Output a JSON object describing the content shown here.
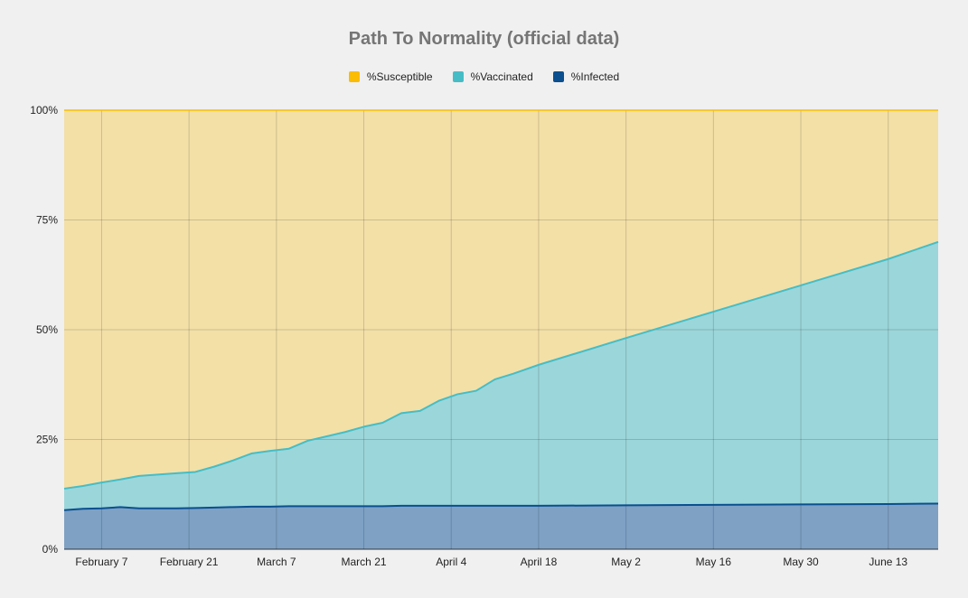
{
  "colors": {
    "susceptible": "#fbbc04",
    "vaccinated": "#46bdc6",
    "infected": "#0b4f8f",
    "susceptible_fill": "#f3e0a7",
    "vaccinated_fill": "#9bd6da",
    "infected_fill": "#7ea1c4"
  },
  "chart_data": {
    "type": "area",
    "stacked": true,
    "title": "Path To Normality (official data)",
    "legend_position": "top",
    "grid": true,
    "y_ticks": [
      "0%",
      "25%",
      "50%",
      "75%",
      "100%"
    ],
    "ylim": [
      0,
      100
    ],
    "x_ticks": [
      {
        "label": "February 7",
        "date": "2021-02-07"
      },
      {
        "label": "February 21",
        "date": "2021-02-21"
      },
      {
        "label": "March 7",
        "date": "2021-03-07"
      },
      {
        "label": "March 21",
        "date": "2021-03-21"
      },
      {
        "label": "April 4",
        "date": "2021-04-04"
      },
      {
        "label": "April 18",
        "date": "2021-04-18"
      },
      {
        "label": "May 2",
        "date": "2021-05-02"
      },
      {
        "label": "May 16",
        "date": "2021-05-16"
      },
      {
        "label": "May 30",
        "date": "2021-05-30"
      },
      {
        "label": "June 13",
        "date": "2021-06-13"
      }
    ],
    "x": [
      "2021-02-01",
      "2021-02-04",
      "2021-02-07",
      "2021-02-10",
      "2021-02-13",
      "2021-02-16",
      "2021-02-19",
      "2021-02-22",
      "2021-02-25",
      "2021-02-28",
      "2021-03-03",
      "2021-03-06",
      "2021-03-09",
      "2021-03-12",
      "2021-03-15",
      "2021-03-18",
      "2021-03-21",
      "2021-03-24",
      "2021-03-27",
      "2021-03-30",
      "2021-04-02",
      "2021-04-05",
      "2021-04-08",
      "2021-04-11",
      "2021-04-14",
      "2021-04-18",
      "2021-05-02",
      "2021-05-16",
      "2021-05-30",
      "2021-06-13",
      "2021-06-21"
    ],
    "series": [
      {
        "name": "%Susceptible",
        "values": [
          86.2,
          85.6,
          84.8,
          84.1,
          83.3,
          83.0,
          82.7,
          82.4,
          81.2,
          79.8,
          78.2,
          77.6,
          77.1,
          75.3,
          74.3,
          73.3,
          72.1,
          71.2,
          69.0,
          68.5,
          66.2,
          64.7,
          63.9,
          61.3,
          60.0,
          58.0,
          51.9,
          45.9,
          39.9,
          33.9,
          30.0
        ]
      },
      {
        "name": "%Vaccinated",
        "values": [
          4.9,
          5.2,
          5.9,
          6.3,
          7.4,
          7.7,
          8.0,
          8.2,
          9.3,
          10.6,
          12.1,
          12.7,
          13.1,
          14.9,
          15.9,
          16.9,
          18.1,
          19.0,
          21.1,
          21.6,
          23.9,
          25.4,
          26.2,
          28.8,
          30.1,
          32.1,
          38.1,
          44.0,
          49.9,
          55.8,
          59.6
        ]
      },
      {
        "name": "%Infected",
        "values": [
          8.9,
          9.2,
          9.3,
          9.6,
          9.3,
          9.3,
          9.3,
          9.4,
          9.5,
          9.6,
          9.7,
          9.7,
          9.8,
          9.8,
          9.8,
          9.8,
          9.8,
          9.8,
          9.9,
          9.9,
          9.9,
          9.9,
          9.9,
          9.9,
          9.9,
          9.9,
          10.0,
          10.1,
          10.2,
          10.3,
          10.4
        ]
      }
    ]
  }
}
